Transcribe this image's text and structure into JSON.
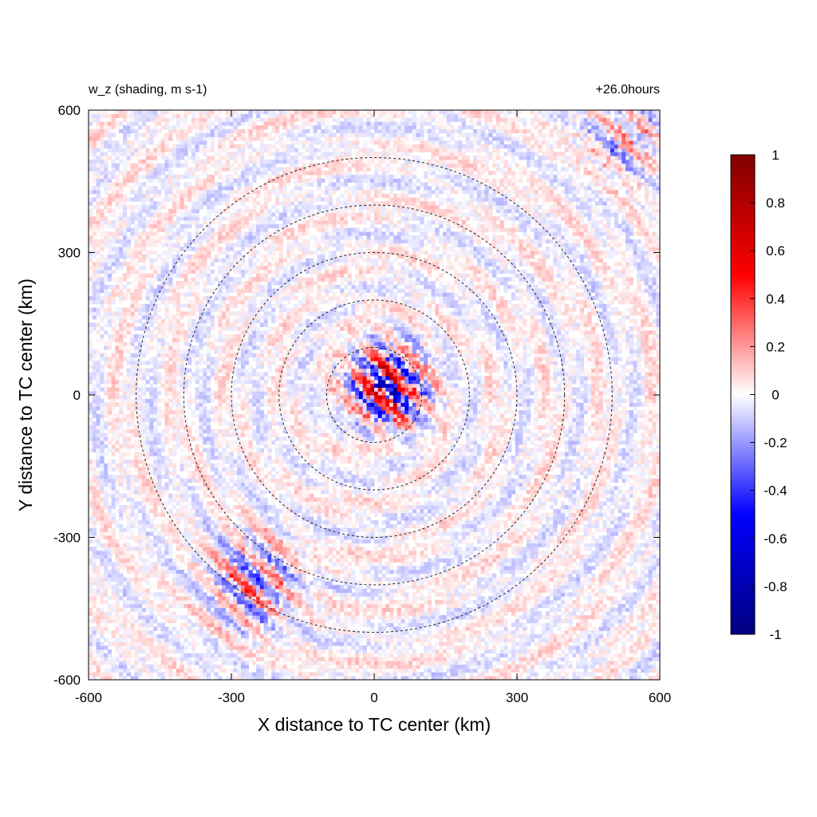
{
  "chart_data": {
    "type": "heatmap",
    "title_left": "w_z (shading, m s-1)",
    "title_right": "+26.0hours",
    "xlabel": "X distance to TC center (km)",
    "ylabel": "Y distance to TC center (km)",
    "xlim": [
      -600,
      600
    ],
    "ylim": [
      -600,
      600
    ],
    "xticks": [
      {
        "v": -600,
        "label": "-600"
      },
      {
        "v": -300,
        "label": "-300"
      },
      {
        "v": 0,
        "label": "0"
      },
      {
        "v": 300,
        "label": "300"
      },
      {
        "v": 600,
        "label": "600"
      }
    ],
    "yticks": [
      {
        "v": -600,
        "label": "-600"
      },
      {
        "v": -300,
        "label": "-300"
      },
      {
        "v": 0,
        "label": "0"
      },
      {
        "v": 300,
        "label": "300"
      },
      {
        "v": 600,
        "label": "600"
      }
    ],
    "grid": false,
    "contour_rings_km": [
      100,
      200,
      300,
      400,
      500
    ],
    "contour_center_km": [
      0,
      0
    ],
    "contour_style": "dashed-black",
    "colorbar": {
      "range": [
        -1,
        1
      ],
      "ticks": [
        {
          "v": 1,
          "label": "1"
        },
        {
          "v": 0.8,
          "label": "0.8"
        },
        {
          "v": 0.6,
          "label": "0.6"
        },
        {
          "v": 0.4,
          "label": "0.4"
        },
        {
          "v": 0.2,
          "label": "0.2"
        },
        {
          "v": 0,
          "label": "0"
        },
        {
          "v": -0.2,
          "label": "-0.2"
        },
        {
          "v": -0.4,
          "label": "-0.4"
        },
        {
          "v": -0.6,
          "label": "-0.6"
        },
        {
          "v": -0.8,
          "label": "-0.8"
        },
        {
          "v": -1,
          "label": "-1"
        }
      ],
      "colormap": [
        "#00007f",
        "#0000ff",
        "#ffffff",
        "#ff0000",
        "#7f0000"
      ],
      "position": "right"
    },
    "field_features": [
      {
        "kind": "eyewall-cells",
        "x": 30,
        "y": 20,
        "max_abs": 0.9
      },
      {
        "kind": "rainband-cluster",
        "x": -250,
        "y": -400,
        "max_abs": 0.4
      },
      {
        "kind": "rainband-cluster",
        "x": 530,
        "y": 540,
        "max_abs": 0.3
      }
    ]
  }
}
